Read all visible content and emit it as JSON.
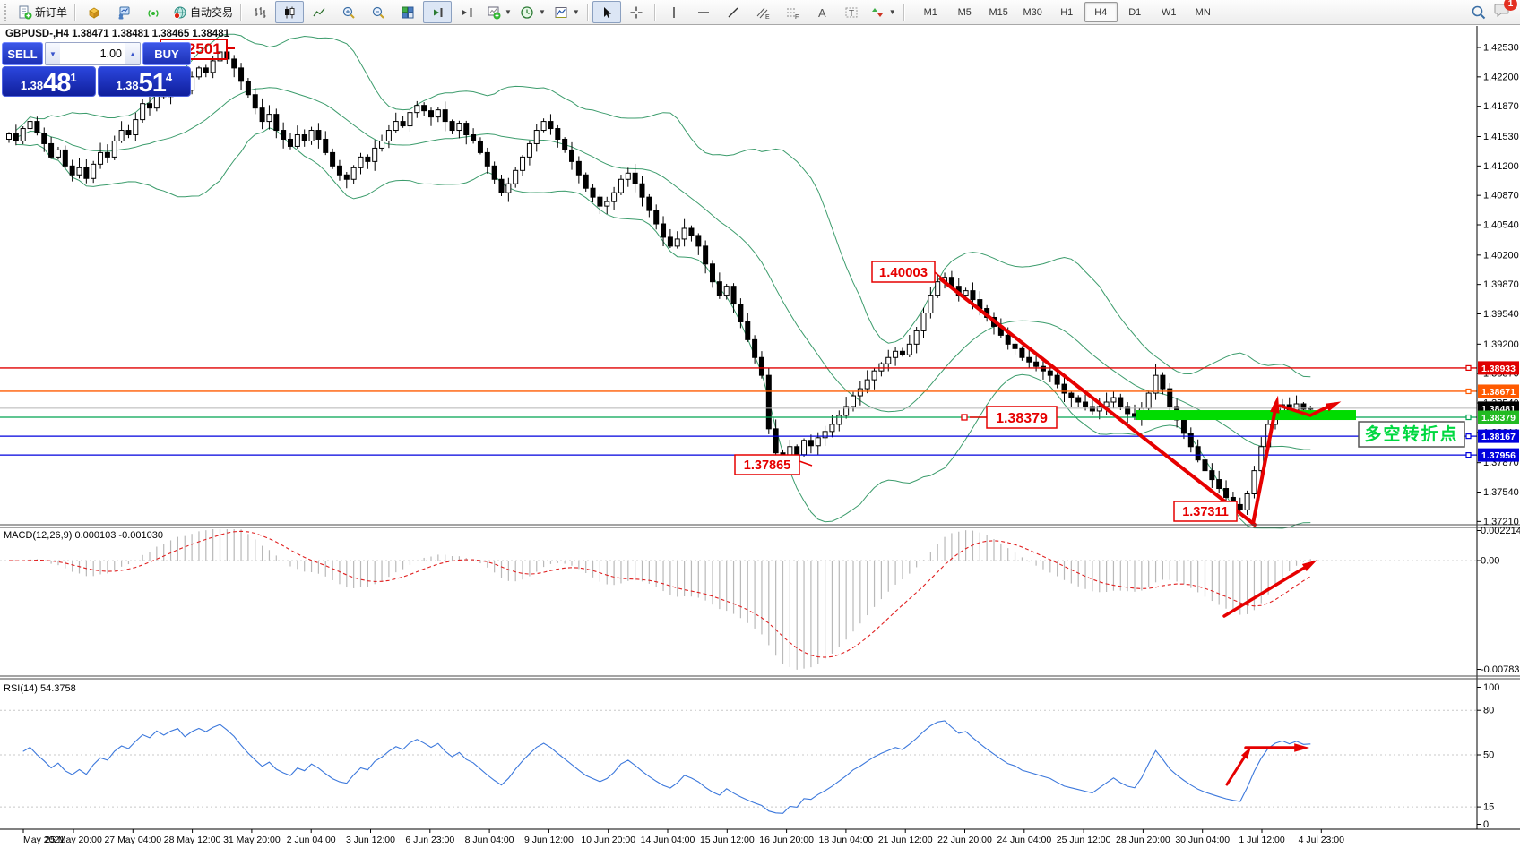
{
  "toolbar": {
    "new_order_label": "新订单",
    "autotrade_label": "自动交易",
    "timeframes": [
      "M1",
      "M5",
      "M15",
      "M30",
      "H1",
      "H4",
      "D1",
      "W1",
      "MN"
    ],
    "active_timeframe": "H4",
    "notification_count": "1",
    "icon_names": [
      "new-order-icon",
      "cube-icon",
      "tester-icon",
      "signal-icon",
      "autotrading-globe-icon",
      "bar-chart-icon",
      "candlestick-icon",
      "line-chart-icon",
      "zoom-in-icon",
      "zoom-out-icon",
      "tile-windows-icon",
      "auto-scroll-icon",
      "chart-shift-icon",
      "new-chart-icon",
      "period-clock-icon",
      "indicator-frame-icon",
      "cursor-icon",
      "crosshair-icon",
      "vertical-line-icon",
      "horizontal-line-icon",
      "trendline-icon",
      "channel-icon",
      "fibonacci-icon",
      "text-icon",
      "text-label-icon",
      "arrows-icon",
      "search-icon",
      "chat-icon"
    ]
  },
  "symbol_bar": {
    "text": "GBPUSD-,H4  1.38471 1.38481 1.38465 1.38481"
  },
  "trade_panel": {
    "sell_label": "SELL",
    "buy_label": "BUY",
    "volume": "1.00",
    "bid_small": "1.38",
    "bid_big": "48",
    "bid_sup": "1",
    "ask_small": "1.38",
    "ask_big": "51",
    "ask_sup": "4"
  },
  "chart_data": {
    "type": "candlestick",
    "symbol": "GBPUSD-",
    "timeframe": "H4",
    "ohlc_line": "1.38471 1.38481 1.38465 1.38481",
    "closes": [
      1.4156,
      1.4148,
      1.4162,
      1.417,
      1.4157,
      1.4145,
      1.413,
      1.4138,
      1.412,
      1.411,
      1.4118,
      1.4106,
      1.4122,
      1.4135,
      1.413,
      1.4148,
      1.416,
      1.4155,
      1.4172,
      1.419,
      1.4185,
      1.4205,
      1.4198,
      1.421,
      1.4218,
      1.4205,
      1.422,
      1.423,
      1.4225,
      1.4238,
      1.4248,
      1.424,
      1.423,
      1.4215,
      1.42,
      1.4185,
      1.417,
      1.4178,
      1.416,
      1.415,
      1.4142,
      1.4155,
      1.4148,
      1.416,
      1.415,
      1.4135,
      1.412,
      1.411,
      1.4105,
      1.4118,
      1.413,
      1.4125,
      1.414,
      1.4148,
      1.416,
      1.417,
      1.4165,
      1.418,
      1.4188,
      1.4182,
      1.4175,
      1.4183,
      1.417,
      1.416,
      1.4168,
      1.4155,
      1.4148,
      1.4135,
      1.412,
      1.4105,
      1.409,
      1.41,
      1.4115,
      1.413,
      1.4145,
      1.416,
      1.417,
      1.4162,
      1.415,
      1.4138,
      1.4125,
      1.411,
      1.4095,
      1.4085,
      1.4075,
      1.408,
      1.409,
      1.4105,
      1.4112,
      1.41,
      1.4085,
      1.407,
      1.4055,
      1.404,
      1.403,
      1.4038,
      1.405,
      1.4042,
      1.403,
      1.401,
      1.399,
      1.3975,
      1.3985,
      1.3965,
      1.3945,
      1.3925,
      1.3905,
      1.3885,
      1.3825,
      1.3798,
      1.3792,
      1.3805,
      1.3796,
      1.3812,
      1.3806,
      1.3815,
      1.3822,
      1.383,
      1.384,
      1.385,
      1.3862,
      1.387,
      1.388,
      1.389,
      1.3898,
      1.3905,
      1.3912,
      1.3908,
      1.392,
      1.3935,
      1.3955,
      1.3975,
      1.399,
      1.3995,
      1.3985,
      1.3975,
      1.398,
      1.397,
      1.396,
      1.395,
      1.394,
      1.393,
      1.392,
      1.3915,
      1.3905,
      1.39,
      1.3895,
      1.389,
      1.3885,
      1.3875,
      1.3865,
      1.386,
      1.3855,
      1.385,
      1.3845,
      1.385,
      1.3855,
      1.386,
      1.385,
      1.3842,
      1.3838,
      1.3848,
      1.3865,
      1.3885,
      1.387,
      1.385,
      1.3835,
      1.382,
      1.3805,
      1.379,
      1.3778,
      1.3768,
      1.3758,
      1.3748,
      1.374,
      1.3734,
      1.3752,
      1.3778,
      1.3805,
      1.383,
      1.3845,
      1.3852,
      1.3846,
      1.3853,
      1.3847,
      1.38481
    ],
    "wick_overrides": {
      "30": {
        "high": 1.42501
      },
      "110": {
        "low": 1.37865
      },
      "133": {
        "high": 1.40003
      },
      "163": {
        "high": 1.3898
      },
      "175": {
        "low": 1.37311
      }
    },
    "price_axis_ticks": [
      "1.42530",
      "1.42200",
      "1.41870",
      "1.41530",
      "1.41200",
      "1.40870",
      "1.40540",
      "1.40200",
      "1.39870",
      "1.39540",
      "1.39200",
      "1.38870",
      "1.38540",
      "1.38210",
      "1.37870",
      "1.37540",
      "1.37210"
    ],
    "price_badges": [
      {
        "value": "1.38933",
        "color": "#e00000"
      },
      {
        "value": "1.38671",
        "color": "#ff5a00"
      },
      {
        "value": "1.38481",
        "color": "#000000"
      },
      {
        "value": "1.38379",
        "color": "#22bb22"
      },
      {
        "value": "1.38167",
        "color": "#0000dd"
      },
      {
        "value": "1.37956",
        "color": "#0000dd"
      }
    ],
    "hlines": [
      {
        "price": 1.38933,
        "color": "#e00000",
        "w": 1.4,
        "anchor": true
      },
      {
        "price": 1.38671,
        "color": "#ff5a00",
        "w": 1.4,
        "anchor": true
      },
      {
        "price": 1.38481,
        "color": "#b4b4b4",
        "w": 1.1,
        "anchor": false
      },
      {
        "price": 1.38379,
        "color": "#00a550",
        "w": 1.2,
        "anchor": true
      },
      {
        "price": 1.38167,
        "color": "#0000dd",
        "w": 1.2,
        "anchor": true
      },
      {
        "price": 1.37956,
        "color": "#0000dd",
        "w": 1.2,
        "anchor": true
      }
    ],
    "date_labels": [
      "May 2021",
      "25 May 20:00",
      "27 May 04:00",
      "28 May 12:00",
      "31 May 20:00",
      "2 Jun 04:00",
      "3 Jun 12:00",
      "6 Jun 23:00",
      "8 Jun 04:00",
      "9 Jun 12:00",
      "10 Jun 20:00",
      "14 Jun 04:00",
      "15 Jun 12:00",
      "16 Jun 20:00",
      "18 Jun 04:00",
      "21 Jun 12:00",
      "22 Jun 20:00",
      "24 Jun 04:00",
      "25 Jun 12:00",
      "28 Jun 20:00",
      "30 Jun 04:00",
      "1 Jul 12:00",
      "4 Jul 23:00"
    ],
    "indicators": {
      "macd_label": "MACD(12,26,9) 0.000103 -0.001030",
      "macd_axis": [
        "0.002214",
        "0.00",
        "-0.007831"
      ],
      "rsi_label": "RSI(14) 54.3758",
      "rsi_axis": [
        "100",
        "80",
        "50",
        "15",
        "0"
      ],
      "rsi_levels": [
        80,
        50,
        15
      ]
    },
    "annotations": {
      "top_price_label": "1.42501",
      "swing_high_label": "1.40003",
      "swing_low1_label": "1.37865",
      "swing_low2_label": "1.37311",
      "support_price_label": "1.38379",
      "note_text": "多空转折点",
      "annotation_red": "#e60000",
      "support_bar_green": "#00dc00",
      "note_text_green": "#00d840"
    }
  }
}
